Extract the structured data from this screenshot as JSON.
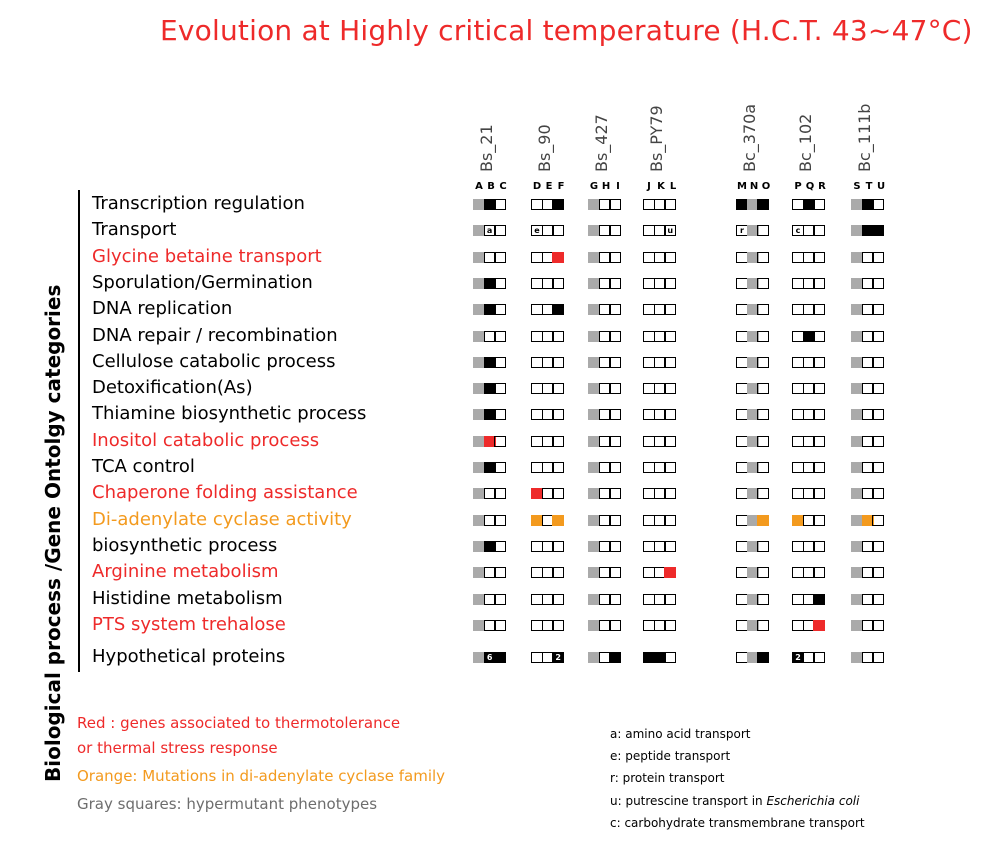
{
  "title": "Evolution at Highly critical temperature  (H.C.T.  43~47°C)",
  "axis_label": "Biological   process   /Gene Ontolgy  categories",
  "strains": [
    {
      "name": "Bs_21",
      "letters": "A B C"
    },
    {
      "name": "Bs_90",
      "letters": "D E F"
    },
    {
      "name": "Bs_427",
      "letters": "G H I"
    },
    {
      "name": "Bs_PY79",
      "letters": "J K L"
    },
    {
      "name": "Bc_370a",
      "letters": "M N O"
    },
    {
      "name": "Bc_102",
      "letters": "P Q R"
    },
    {
      "name": "Bc_111b",
      "letters": "S T U"
    }
  ],
  "categories": [
    {
      "label": "Transcription regulation",
      "color": "#000000"
    },
    {
      "label": "Transport",
      "color": "#000000"
    },
    {
      "label": "Glycine betaine transport",
      "color": "#ee2a2a"
    },
    {
      "label": "Sporulation/Germination",
      "color": "#000000"
    },
    {
      "label": "DNA replication",
      "color": "#000000"
    },
    {
      "label": "DNA repair / recombination",
      "color": "#000000"
    },
    {
      "label": "Cellulose catabolic process",
      "color": "#000000"
    },
    {
      "label": "Detoxification(As)",
      "color": "#000000"
    },
    {
      "label": "Thiamine biosynthetic process",
      "color": "#000000"
    },
    {
      "label": "Inositol catabolic process",
      "color": "#ee2a2a"
    },
    {
      "label": "TCA control",
      "color": "#000000"
    },
    {
      "label": "Chaperone folding assistance",
      "color": "#ee2a2a"
    },
    {
      "label": "Di-adenylate cyclase activity",
      "color": "#f39a1e"
    },
    {
      "label": "biosynthetic process",
      "color": "#000000"
    },
    {
      "label": "Arginine metabolism",
      "color": "#ee2a2a"
    },
    {
      "label": "Histidine metabolism",
      "color": "#000000"
    },
    {
      "label": "PTS system trehalose",
      "color": "#ee2a2a"
    },
    {
      "label": "Hypothetical proteins",
      "color": "#000000"
    }
  ],
  "grid": [
    [
      "GBW",
      "WWB",
      "GWW",
      "WWW",
      "BGB",
      "WBW",
      "GBW"
    ],
    [
      "GWW",
      "WWW",
      "GWW",
      "WWW",
      "WGW",
      "WWW",
      "GBB"
    ],
    [
      "GWW",
      "WWR",
      "GWW",
      "WWW",
      "WGW",
      "WWW",
      "GWW"
    ],
    [
      "GBW",
      "WWW",
      "GWW",
      "WWW",
      "WGW",
      "WWW",
      "GWW"
    ],
    [
      "GBW",
      "WWB",
      "GWW",
      "WWW",
      "WGW",
      "WWW",
      "GWW"
    ],
    [
      "GWW",
      "WWW",
      "GWW",
      "WWW",
      "WGW",
      "WBW",
      "GWW"
    ],
    [
      "GBW",
      "WWW",
      "GWW",
      "WWW",
      "WGW",
      "WWW",
      "GWW"
    ],
    [
      "GBW",
      "WWW",
      "GWW",
      "WWW",
      "WGW",
      "WWW",
      "GWW"
    ],
    [
      "GBW",
      "WWW",
      "GWW",
      "WWW",
      "WGW",
      "WWW",
      "GWW"
    ],
    [
      "GRW",
      "WWW",
      "GWW",
      "WWW",
      "WGW",
      "WWW",
      "GWW"
    ],
    [
      "GBW",
      "WWW",
      "GWW",
      "WWW",
      "WGW",
      "WWW",
      "GWW"
    ],
    [
      "GWW",
      "RWW",
      "GWW",
      "WWW",
      "WGW",
      "WWW",
      "GWW"
    ],
    [
      "GWW",
      "OWO",
      "GWW",
      "WWW",
      "WGO",
      "OWW",
      "GOW"
    ],
    [
      "GBW",
      "WWW",
      "GWW",
      "WWW",
      "WGW",
      "WWW",
      "GWW"
    ],
    [
      "GWW",
      "WWW",
      "GWW",
      "WWR",
      "WGW",
      "WWW",
      "GWW"
    ],
    [
      "GWW",
      "WWW",
      "GWW",
      "WWW",
      "WGW",
      "WWB",
      "GWW"
    ],
    [
      "GWW",
      "WWW",
      "GWW",
      "WWW",
      "WGW",
      "WWR",
      "GWW"
    ],
    [
      "GBB",
      "WWB",
      "GWB",
      "BBW",
      "WGB",
      "BWW",
      "GWW"
    ]
  ],
  "cell_annotations": [
    {
      "row": 1,
      "group": 0,
      "cell": 1,
      "text": "a"
    },
    {
      "row": 1,
      "group": 1,
      "cell": 0,
      "text": "e"
    },
    {
      "row": 1,
      "group": 3,
      "cell": 2,
      "text": "u"
    },
    {
      "row": 1,
      "group": 4,
      "cell": 0,
      "text": "r"
    },
    {
      "row": 1,
      "group": 5,
      "cell": 0,
      "text": "c"
    },
    {
      "row": 17,
      "group": 0,
      "cell": 1,
      "text": "6"
    },
    {
      "row": 17,
      "group": 1,
      "cell": 2,
      "text": "2"
    },
    {
      "row": 17,
      "group": 5,
      "cell": 0,
      "text": "2"
    }
  ],
  "legend": {
    "red_line1": "Red :  genes associated to thermotolerance",
    "red_line2": "or thermal stress response",
    "orange": "Orange: Mutations in di-adenylate cyclase family",
    "gray": "Gray squares: hypermutant phenotypes"
  },
  "notes": {
    "a": "a: amino acid transport",
    "e": "e: peptide transport",
    "r": "r:  protein transport",
    "u_prefix": "u:  putrescine transport in ",
    "u_italic": "Escherichia coli",
    "c": "c: carbohydrate transmembrane transport"
  },
  "colors": {
    "title": "#ee2a2a",
    "red": "#ee2a2a",
    "orange": "#f39a1e",
    "gray": "#aaaaaa",
    "gray_text": "#6d6d6d",
    "black": "#000000"
  }
}
